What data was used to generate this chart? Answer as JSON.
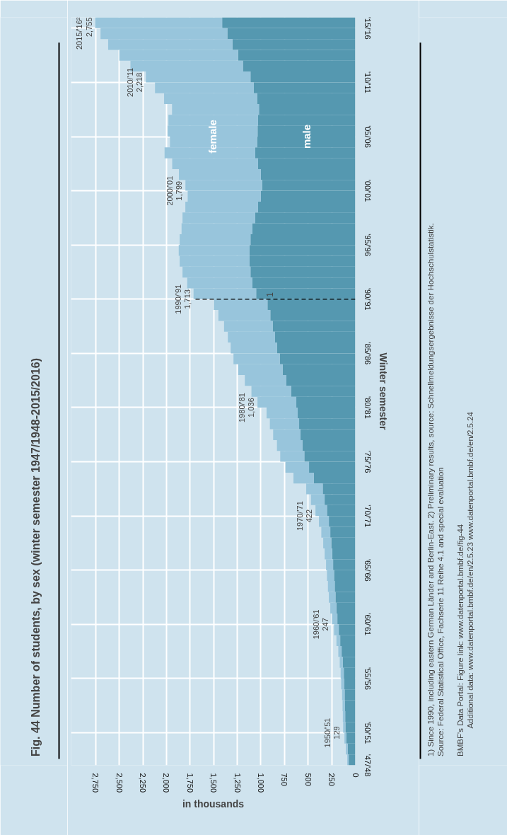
{
  "chart_data": {
    "type": "bar",
    "orientation": "horizontal",
    "stacked": true,
    "title": "Fig. 44     Number of students, by sex (winter semester 1947/1948-2015/2016)",
    "xlabel": "in thousands",
    "ylabel": "Winter semester",
    "categories": [
      "'15/'16",
      null,
      null,
      null,
      null,
      "'10/'11",
      null,
      null,
      null,
      null,
      "'05/'06",
      null,
      null,
      null,
      null,
      "'00/'01",
      null,
      null,
      null,
      null,
      "'95/'96",
      null,
      null,
      null,
      null,
      "'90/'91",
      null,
      null,
      null,
      null,
      "'85/'86",
      null,
      null,
      null,
      null,
      "'80/'81",
      null,
      null,
      null,
      null,
      "'75/'76",
      null,
      null,
      null,
      null,
      "'70/'71",
      null,
      null,
      null,
      null,
      "'65/'66",
      null,
      null,
      null,
      null,
      "'60/'61",
      null,
      null,
      null,
      null,
      "'55/'56",
      null,
      null,
      null,
      null,
      "'50/'51",
      null,
      null,
      "'47/'48"
    ],
    "series": [
      {
        "name": "male",
        "color": "#5598b0",
        "values": [
          1410,
          1355,
          1300,
          1240,
          1190,
          1110,
          1075,
          1040,
          1020,
          1030,
          1035,
          1040,
          1060,
          1030,
          1000,
          985,
          1000,
          1030,
          1060,
          1090,
          1110,
          1120,
          1120,
          1110,
          1090,
          1050,
          930,
          900,
          875,
          850,
          830,
          800,
          770,
          730,
          680,
          625,
          610,
          595,
          580,
          560,
          540,
          490,
          440,
          345,
          325,
          300,
          280,
          265,
          255,
          245,
          235,
          225,
          218,
          210,
          200,
          190,
          175,
          160,
          145,
          133,
          122,
          118,
          113,
          110,
          107,
          105,
          95,
          80,
          70
        ]
      },
      {
        "name": "female",
        "color": "#98c5dc",
        "values": [
          1345,
          1343,
          1317,
          1259,
          1191,
          1108,
          1046,
          985,
          921,
          949,
          951,
          923,
          960,
          909,
          868,
          814,
          775,
          770,
          770,
          750,
          750,
          750,
          740,
          720,
          690,
          663,
          570,
          550,
          515,
          500,
          490,
          490,
          470,
          440,
          420,
          411,
          330,
          310,
          290,
          270,
          255,
          250,
          215,
          175,
          145,
          122,
          105,
          95,
          85,
          80,
          75,
          75,
          72,
          70,
          65,
          57,
          50,
          40,
          35,
          32,
          33,
          32,
          27,
          25,
          25,
          24,
          20,
          20,
          15
        ]
      }
    ],
    "xlim": [
      3010,
      0
    ],
    "xticks": [
      0,
      250,
      500,
      750,
      {
        "value": 1000,
        "label": "1,000"
      },
      {
        "value": 1250,
        "label": "1,250"
      },
      {
        "value": 1500,
        "label": "1,500"
      },
      {
        "value": 1750,
        "label": "1,750"
      },
      {
        "value": 2000,
        "label": "2,000"
      },
      {
        "value": 2250,
        "label": "2,250"
      },
      {
        "value": 2500,
        "label": "2,500"
      },
      {
        "value": 2750,
        "label": "2,750"
      }
    ],
    "grid": true,
    "ref_lines": [
      {
        "axis": "y",
        "value": "'90/'91",
        "color": "#000000",
        "line_style": "dashed"
      }
    ],
    "annotations": [
      {
        "text": "2015/'16²\n2,755",
        "x": 2755,
        "y": "'15/'16"
      },
      {
        "text": "2010/'11\n2,218",
        "x": 2218,
        "y": "'10/'11"
      },
      {
        "text": "2000/'01\n1,799",
        "x": 1799,
        "y": "'00/'01"
      },
      {
        "text": "1990/'91\n1,713",
        "x": 1713,
        "y": "'90/'91"
      },
      {
        "text": "1",
        "y": "'90/'91"
      },
      {
        "text": "1980/'81\n1,036",
        "x": 1036,
        "y": "'80/'81"
      },
      {
        "text": "1970/'71\n422",
        "x": 422,
        "y": "'70/'71"
      },
      {
        "text": "1960/'61\n247",
        "x": 247,
        "y": "'60/'61"
      },
      {
        "text": "1950/'51\n129",
        "x": 129,
        "y": "'50/'51"
      },
      "1) Since 1990, including eastern German Länder and Berlin-East. 2) Preliminary results, source: Schnellmeldungsergebnisse der Hochschulstatistik.",
      "Source: Federal Statistical Office, Fachserie 11 Reihe 4.1 and special evaluation",
      "BMBF's Data Portal: Figure link: www.datenportal.bmbf.de/fig-44",
      "Additional data: www.datenportal.bmbf.de/en/2.5.23   www.datenportal.bmbf.de/en/2.5.24"
    ]
  }
}
